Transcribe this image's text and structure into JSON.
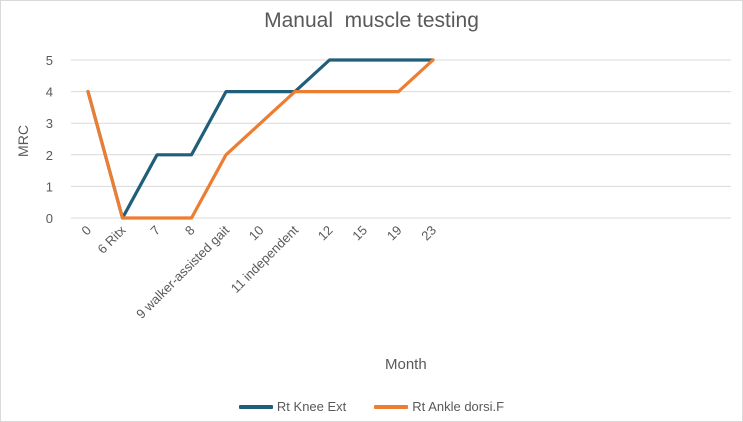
{
  "chart_data": {
    "type": "line",
    "title": "Manual  muscle testing",
    "xlabel": "Month",
    "ylabel": "MRC",
    "ylim": [
      0,
      5
    ],
    "yticks": [
      "0",
      "1",
      "2",
      "3",
      "4",
      "5"
    ],
    "grid": true,
    "legend_position": "bottom",
    "categories": [
      "0",
      "6 Ritx",
      "7",
      "8",
      "9  walker-assisted gait",
      "10",
      "11 independent",
      "12",
      "15",
      "19",
      "23"
    ],
    "series": [
      {
        "name": "Rt Knee Ext",
        "color": "#1f5f7a",
        "values": [
          4,
          0,
          2,
          2,
          4,
          4,
          4,
          5,
          5,
          5,
          5
        ]
      },
      {
        "name": "Rt Ankle dorsi.F",
        "color": "#ed7d31",
        "values": [
          4,
          0,
          0,
          0,
          2,
          3,
          4,
          4,
          4,
          4,
          5
        ]
      }
    ]
  }
}
